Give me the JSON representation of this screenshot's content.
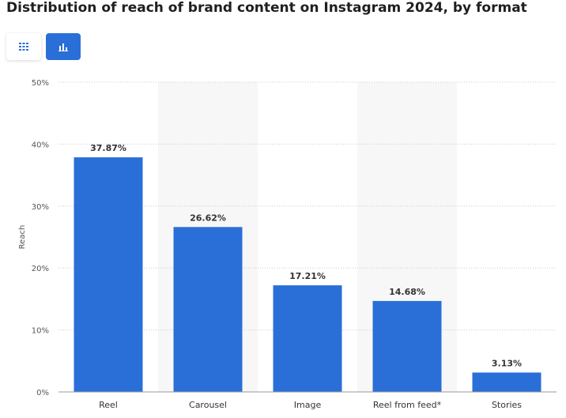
{
  "title": "Distribution of reach of brand content on Instagram 2024, by format",
  "toolbar": {
    "table_icon": "grid-icon",
    "chart_icon": "bar-chart-icon"
  },
  "colors": {
    "bar": "#2a6fd8",
    "band": "#f7f7f7",
    "grid": "#cccccc",
    "active_toggle": "#2a6fd8"
  },
  "chart_data": {
    "type": "bar",
    "title": "Distribution of reach of brand content on Instagram 2024, by format",
    "xlabel": "",
    "ylabel": "Reach",
    "categories": [
      "Reel",
      "Carousel",
      "Image",
      "Reel from feed*",
      "Stories"
    ],
    "values": [
      37.87,
      26.62,
      17.21,
      14.68,
      3.13
    ],
    "value_labels": [
      "37.87%",
      "26.62%",
      "17.21%",
      "14.68%",
      "3.13%"
    ],
    "ylim": [
      0,
      50
    ],
    "yticks": [
      0,
      10,
      20,
      30,
      40,
      50
    ],
    "ytick_labels": [
      "0%",
      "10%",
      "20%",
      "30%",
      "40%",
      "50%"
    ],
    "grid": true,
    "alternating_bands": true
  }
}
